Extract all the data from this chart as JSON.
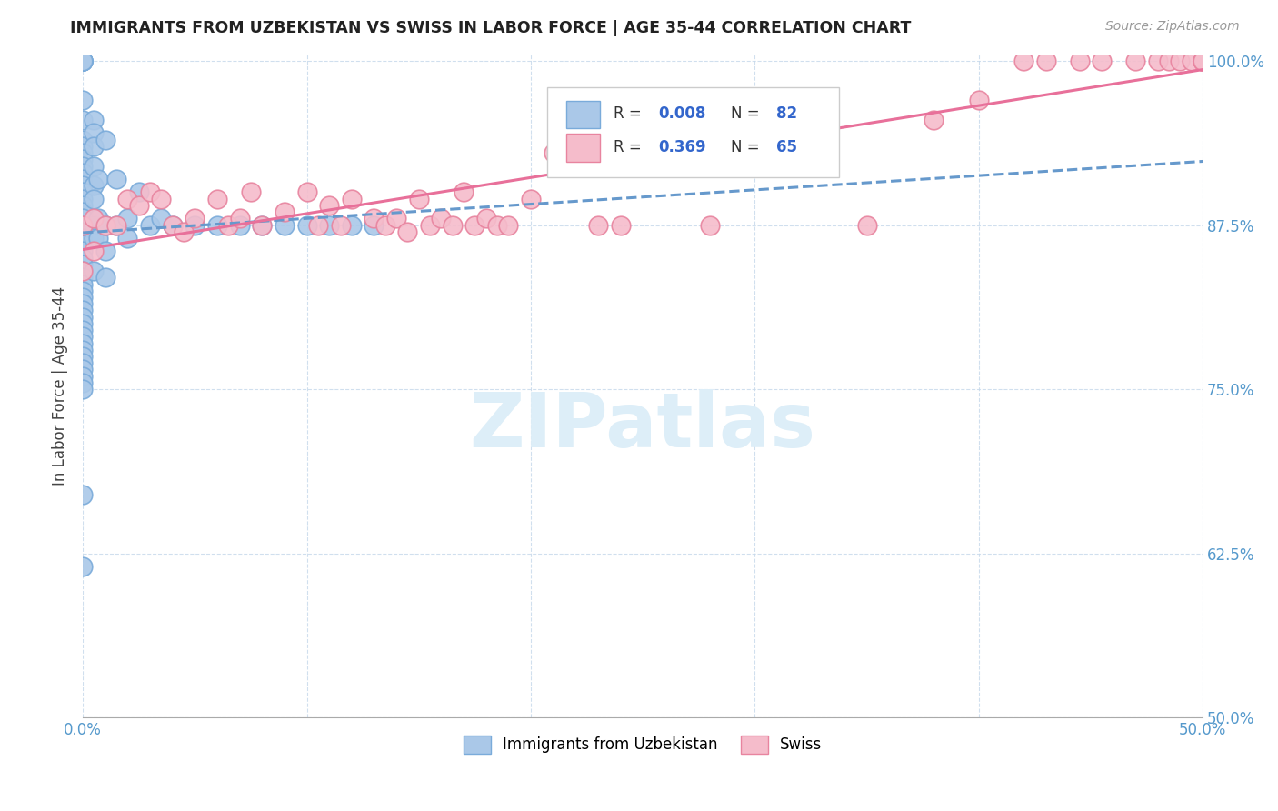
{
  "title": "IMMIGRANTS FROM UZBEKISTAN VS SWISS IN LABOR FORCE | AGE 35-44 CORRELATION CHART",
  "source": "Source: ZipAtlas.com",
  "ylabel": "In Labor Force | Age 35-44",
  "xlim": [
    0.0,
    0.5
  ],
  "ylim": [
    0.5,
    1.005
  ],
  "xticks": [
    0.0,
    0.1,
    0.2,
    0.3,
    0.4,
    0.5
  ],
  "xticklabels_show": [
    "0.0%",
    "",
    "",
    "",
    "",
    "50.0%"
  ],
  "yticks": [
    0.5,
    0.625,
    0.75,
    0.875,
    1.0
  ],
  "yticklabels": [
    "50.0%",
    "62.5%",
    "75.0%",
    "87.5%",
    "100.0%"
  ],
  "legend_label_blue": "Immigrants from Uzbekistan",
  "legend_label_pink": "Swiss",
  "blue_color": "#aac8e8",
  "blue_edge_color": "#7aabda",
  "pink_color": "#f5bccb",
  "pink_edge_color": "#e8849f",
  "blue_line_color": "#6699cc",
  "pink_line_color": "#e8709a",
  "watermark_color": "#ddeef8",
  "blue_x": [
    0.0,
    0.0,
    0.0,
    0.0,
    0.0,
    0.0,
    0.0,
    0.0,
    0.0,
    0.0,
    0.0,
    0.0,
    0.0,
    0.0,
    0.0,
    0.0,
    0.0,
    0.0,
    0.0,
    0.0,
    0.0,
    0.0,
    0.0,
    0.0,
    0.0,
    0.0,
    0.0,
    0.0,
    0.0,
    0.0,
    0.0,
    0.0,
    0.0,
    0.0,
    0.0,
    0.0,
    0.0,
    0.0,
    0.0,
    0.0,
    0.0,
    0.0,
    0.0,
    0.0,
    0.0,
    0.0,
    0.0,
    0.0,
    0.0,
    0.005,
    0.005,
    0.005,
    0.005,
    0.005,
    0.005,
    0.005,
    0.005,
    0.005,
    0.007,
    0.007,
    0.007,
    0.01,
    0.01,
    0.01,
    0.01,
    0.015,
    0.015,
    0.02,
    0.02,
    0.025,
    0.03,
    0.035,
    0.04,
    0.05,
    0.06,
    0.07,
    0.08,
    0.09,
    0.1,
    0.11,
    0.12,
    0.13
  ],
  "blue_y": [
    1.0,
    1.0,
    1.0,
    1.0,
    1.0,
    1.0,
    0.97,
    0.955,
    0.94,
    0.935,
    0.93,
    0.925,
    0.92,
    0.915,
    0.91,
    0.905,
    0.9,
    0.895,
    0.89,
    0.885,
    0.88,
    0.875,
    0.87,
    0.865,
    0.86,
    0.855,
    0.85,
    0.845,
    0.84,
    0.835,
    0.83,
    0.825,
    0.82,
    0.815,
    0.81,
    0.805,
    0.8,
    0.795,
    0.79,
    0.785,
    0.78,
    0.775,
    0.77,
    0.765,
    0.76,
    0.755,
    0.75,
    0.67,
    0.615,
    0.955,
    0.945,
    0.935,
    0.92,
    0.905,
    0.895,
    0.875,
    0.865,
    0.84,
    0.91,
    0.88,
    0.865,
    0.94,
    0.875,
    0.855,
    0.835,
    0.91,
    0.875,
    0.88,
    0.865,
    0.9,
    0.875,
    0.88,
    0.875,
    0.875,
    0.875,
    0.875,
    0.875,
    0.875,
    0.875,
    0.875,
    0.875,
    0.875
  ],
  "pink_x": [
    0.0,
    0.0,
    0.005,
    0.005,
    0.01,
    0.015,
    0.02,
    0.025,
    0.03,
    0.035,
    0.04,
    0.045,
    0.05,
    0.06,
    0.065,
    0.07,
    0.075,
    0.08,
    0.09,
    0.1,
    0.105,
    0.11,
    0.115,
    0.12,
    0.13,
    0.135,
    0.14,
    0.145,
    0.15,
    0.155,
    0.16,
    0.165,
    0.17,
    0.175,
    0.18,
    0.185,
    0.19,
    0.2,
    0.21,
    0.22,
    0.23,
    0.24,
    0.25,
    0.26,
    0.27,
    0.28,
    0.295,
    0.31,
    0.33,
    0.35,
    0.38,
    0.4,
    0.42,
    0.43,
    0.445,
    0.455,
    0.47,
    0.48,
    0.485,
    0.49,
    0.495,
    0.5,
    0.5,
    0.5,
    0.5
  ],
  "pink_y": [
    0.875,
    0.84,
    0.88,
    0.855,
    0.875,
    0.875,
    0.895,
    0.89,
    0.9,
    0.895,
    0.875,
    0.87,
    0.88,
    0.895,
    0.875,
    0.88,
    0.9,
    0.875,
    0.885,
    0.9,
    0.875,
    0.89,
    0.875,
    0.895,
    0.88,
    0.875,
    0.88,
    0.87,
    0.895,
    0.875,
    0.88,
    0.875,
    0.9,
    0.875,
    0.88,
    0.875,
    0.875,
    0.895,
    0.93,
    0.93,
    0.875,
    0.875,
    0.93,
    0.93,
    0.93,
    0.875,
    0.97,
    0.955,
    0.95,
    0.875,
    0.955,
    0.97,
    1.0,
    1.0,
    1.0,
    1.0,
    1.0,
    1.0,
    1.0,
    1.0,
    1.0,
    1.0,
    1.0,
    1.0,
    1.0
  ]
}
